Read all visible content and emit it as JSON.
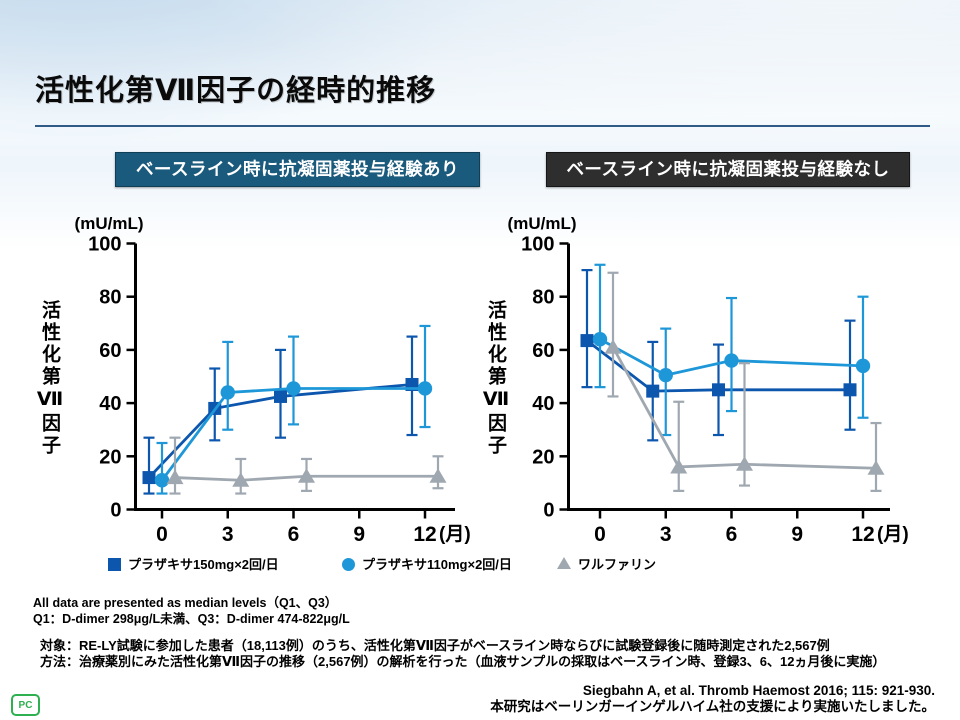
{
  "slide": {
    "title": "活性化第Ⅶ因子の経時的推移",
    "logo_text": "PC"
  },
  "panels": [
    {
      "header": "ベースライン時に抗凝固薬投与経験あり",
      "bg": "#1a5a7c"
    },
    {
      "header": "ベースライン時に抗凝固薬投与経験なし",
      "bg": "#2e2e2e"
    }
  ],
  "legend": {
    "items": [
      {
        "marker": "square",
        "color": "#0d56ad",
        "label": "プラザキサ150mg×2回/日"
      },
      {
        "marker": "circle",
        "color": "#1e97d8",
        "label": "プラザキサ110mg×2回/日"
      },
      {
        "marker": "triangle",
        "color": "#9fa8b0",
        "label": "ワルファリン"
      }
    ]
  },
  "footnotes": {
    "line1": "All data are presented as median levels（Q1、Q3）",
    "line2": "Q1：D-dimer 298μg/L未満、Q3：D-dimer 474-822μg/L",
    "subject": "対象：RE-LY試験に参加した患者（18,113例）のうち、活性化第Ⅶ因子がベースライン時ならびに試験登録後に随時測定された2,567例",
    "method": "方法：治療薬別にみた活性化第Ⅶ因子の推移（2,567例）の解析を行った（血液サンプルの採取はベースライン時、登録3、6、12ヵ月後に実施）"
  },
  "citation": {
    "reference": "Siegbahn A, et al. Thromb Haemost 2016; 115: 921-930.",
    "support": "本研究はベーリンガーインゲルハイム社の支援により実施いたしました。"
  },
  "chart_data": [
    {
      "type": "line",
      "title": "ベースライン時に抗凝固薬投与経験あり",
      "unit_label": "(mU/mL)",
      "ylabel": "活性化第Ⅶ因子",
      "xlabel": "(月)",
      "x": [
        0,
        3,
        6,
        12
      ],
      "x_ticks": [
        0,
        3,
        6,
        9,
        12
      ],
      "ylim": [
        0,
        100
      ],
      "y_ticks": [
        0,
        20,
        40,
        60,
        80,
        100
      ],
      "error_bars": "Q1-Q3",
      "grid": false,
      "series": [
        {
          "name": "プラザキサ150mg×2回/日",
          "marker": "square",
          "color": "#0d56ad",
          "median": [
            12,
            38,
            42.5,
            47
          ],
          "q1": [
            6,
            26,
            27,
            28
          ],
          "q3": [
            27,
            53,
            60,
            65
          ]
        },
        {
          "name": "プラザキサ110mg×2回/日",
          "marker": "circle",
          "color": "#1e97d8",
          "median": [
            11,
            44,
            45.5,
            45.5
          ],
          "q1": [
            6,
            30,
            32,
            31
          ],
          "q3": [
            25,
            63,
            65,
            69
          ]
        },
        {
          "name": "ワルファリン",
          "marker": "triangle",
          "color": "#9fa8b0",
          "median": [
            12,
            11,
            12.5,
            12.5
          ],
          "q1": [
            6,
            6,
            7,
            8
          ],
          "q3": [
            27,
            19,
            19,
            20
          ]
        }
      ]
    },
    {
      "type": "line",
      "title": "ベースライン時に抗凝固薬投与経験なし",
      "unit_label": "(mU/mL)",
      "ylabel": "活性化第Ⅶ因子",
      "xlabel": "(月)",
      "x": [
        0,
        3,
        6,
        12
      ],
      "x_ticks": [
        0,
        3,
        6,
        9,
        12
      ],
      "ylim": [
        0,
        100
      ],
      "y_ticks": [
        0,
        20,
        40,
        60,
        80,
        100
      ],
      "error_bars": "Q1-Q3",
      "grid": false,
      "series": [
        {
          "name": "プラザキサ150mg×2回/日",
          "marker": "square",
          "color": "#0d56ad",
          "median": [
            63.5,
            44.5,
            45,
            45
          ],
          "q1": [
            46,
            26,
            28,
            30
          ],
          "q3": [
            90,
            63,
            62,
            71
          ]
        },
        {
          "name": "プラザキサ110mg×2回/日",
          "marker": "circle",
          "color": "#1e97d8",
          "median": [
            64,
            50.5,
            56,
            54
          ],
          "q1": [
            46,
            28,
            37,
            34.5
          ],
          "q3": [
            92,
            68,
            79.5,
            80
          ]
        },
        {
          "name": "ワルファリン",
          "marker": "triangle",
          "color": "#9fa8b0",
          "median": [
            61,
            16,
            17,
            15.5
          ],
          "q1": [
            42.5,
            7,
            9,
            7
          ],
          "q3": [
            89,
            40.5,
            55,
            32.5
          ]
        }
      ]
    }
  ]
}
